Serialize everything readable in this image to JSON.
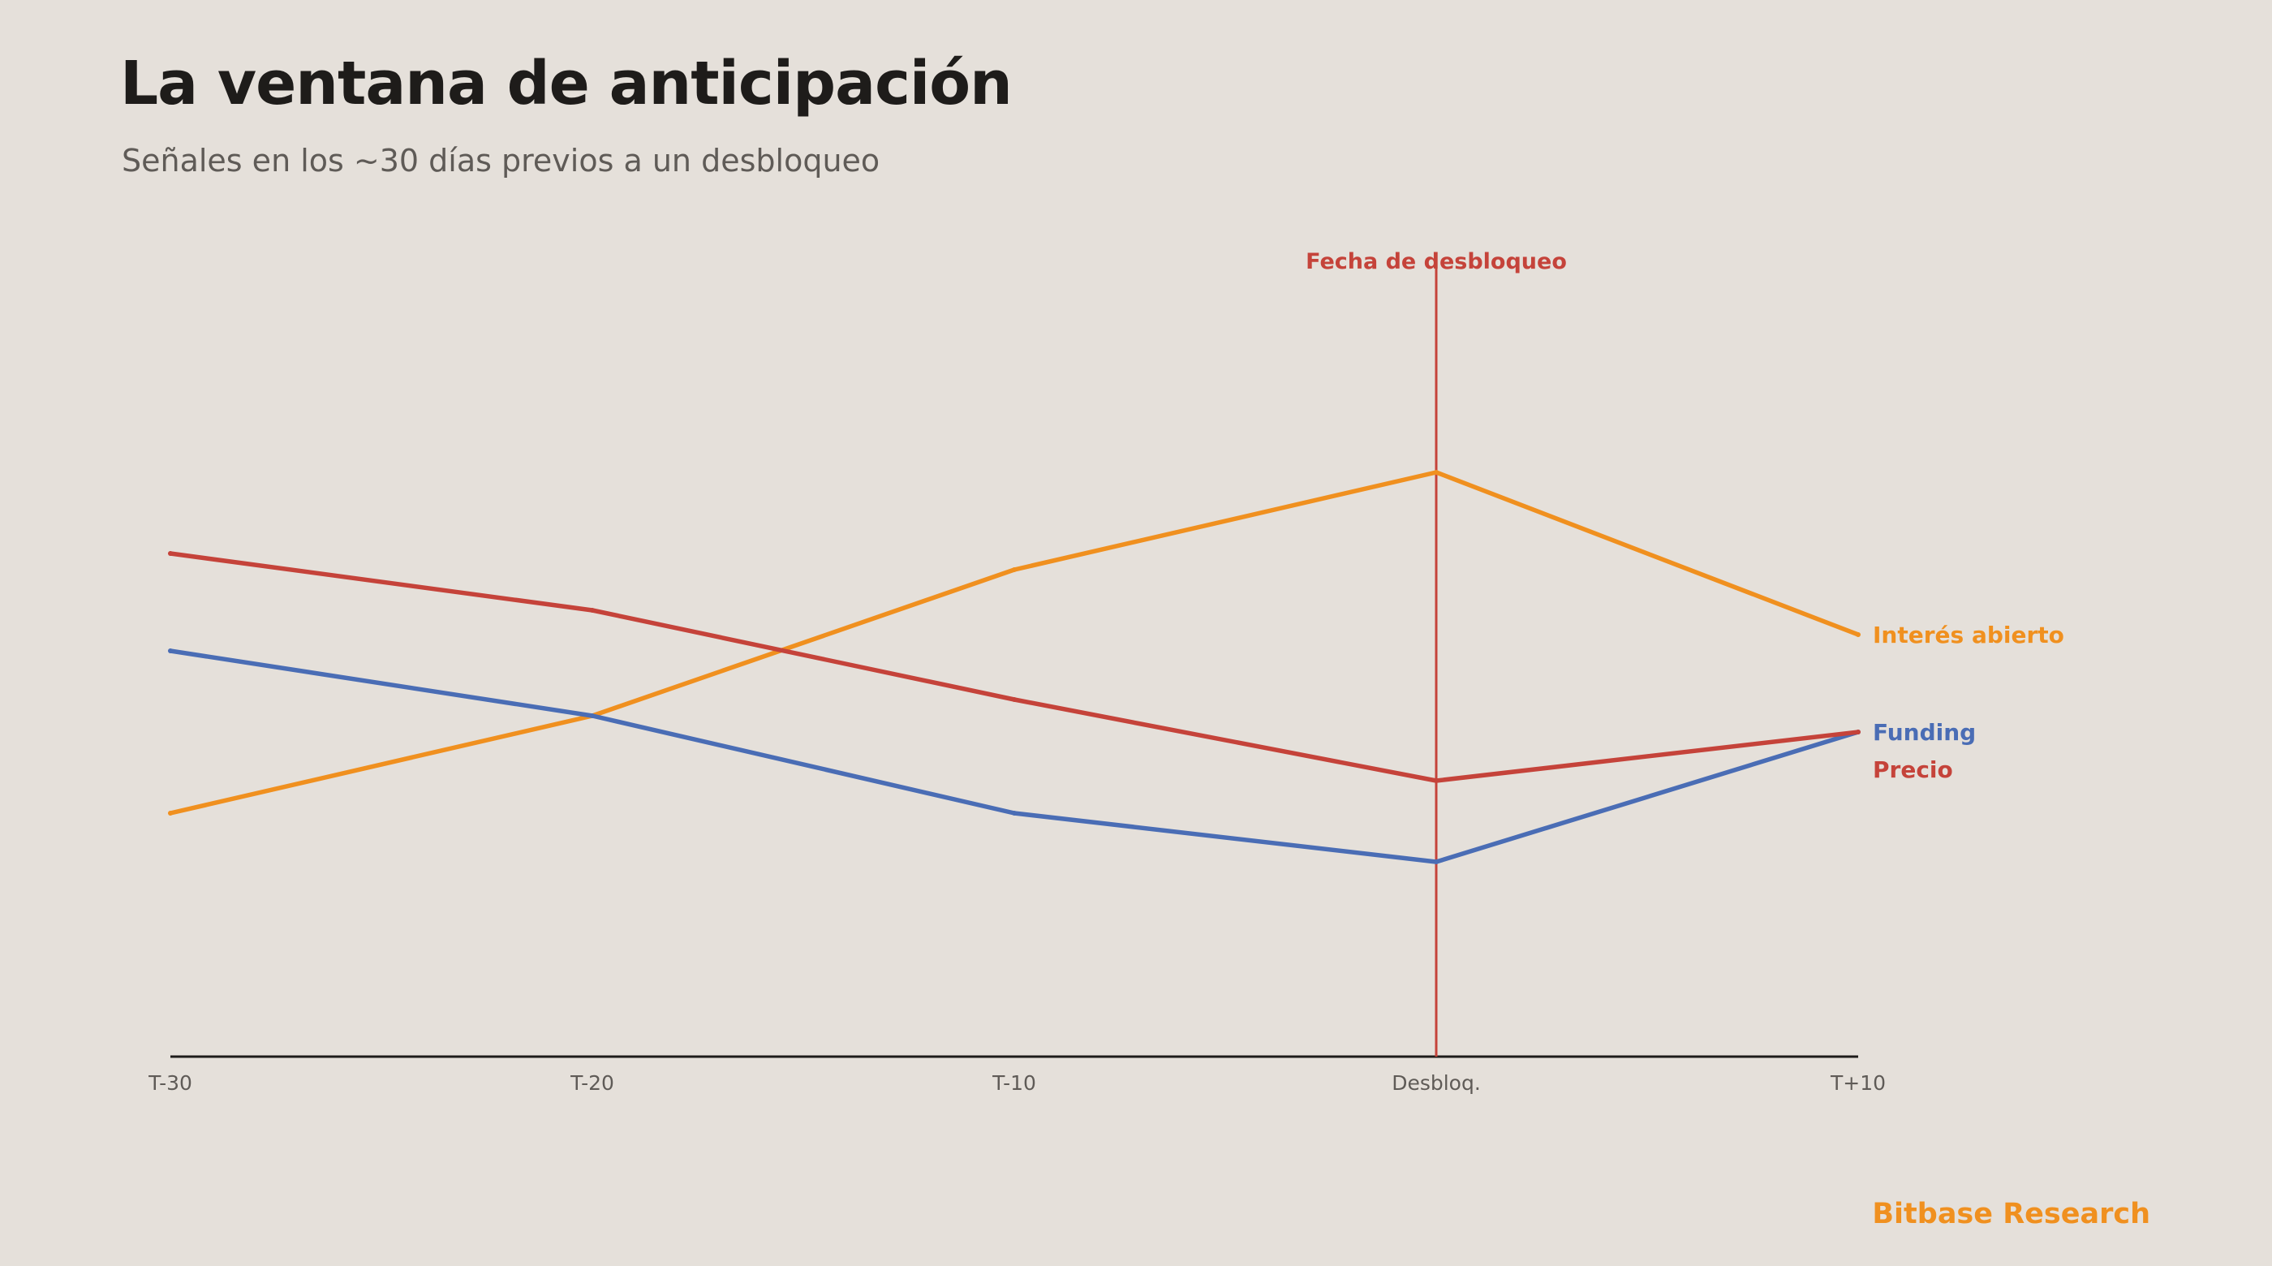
{
  "header": {
    "title": "La ventana de anticipación",
    "subtitle": "Señales en los ~30 días previos a un desbloqueo"
  },
  "footer": {
    "brand": "Bitbase Research"
  },
  "colors": {
    "background": "#E5E0DA",
    "precio": "#C5433A",
    "funding": "#4A6DB5",
    "interes": "#F0901F",
    "axis": "#1E1C1A",
    "event_line": "#C5433A"
  },
  "chart_data": {
    "type": "line",
    "categories": [
      "T-30",
      "T-20",
      "T-10",
      "Desbloq.",
      "T+10"
    ],
    "ylim": [
      0,
      100
    ],
    "grid": false,
    "legend": "direct labels at line ends (right)",
    "series": [
      {
        "name": "Interés abierto",
        "color": "#F0901F",
        "values": [
          30,
          42,
          60,
          72,
          52
        ]
      },
      {
        "name": "Funding",
        "color": "#4A6DB5",
        "values": [
          50,
          42,
          30,
          24,
          40
        ]
      },
      {
        "name": "Precio",
        "color": "#C5433A",
        "values": [
          62,
          55,
          44,
          34,
          40
        ]
      }
    ],
    "annotations": [
      {
        "category": "Desbloq.",
        "label": "Fecha de desbloqueo",
        "type": "vertical-line",
        "color": "#C5433A"
      }
    ]
  }
}
